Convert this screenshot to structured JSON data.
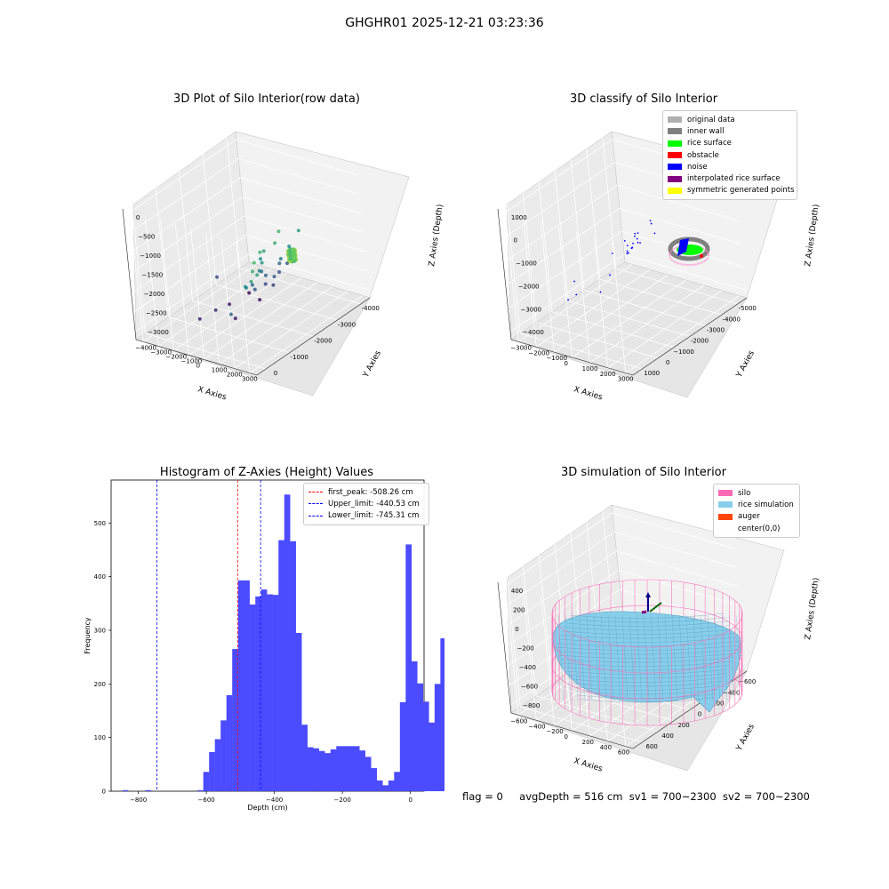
{
  "figure": {
    "title": "GHGHR01 2025-12-21 03:23:36",
    "footer": {
      "flag": "flag = 0",
      "avg_depth": "avgDepth = 516 cm",
      "sv1": "sv1 = 700~2300",
      "sv2": "sv2 = 700~2300"
    }
  },
  "chart_data": [
    {
      "id": "raw-3d",
      "type": "scatter",
      "title": "3D Plot of Silo Interior(row data)",
      "xlabel": "X Axies",
      "ylabel": "Y Axies",
      "zlabel": "Z Axies (Depth)",
      "x_ticks": [
        "-4000",
        "-3000",
        "-2000",
        "-1000",
        "0"
      ],
      "y_ticks": [
        "3000",
        "2000",
        "1000",
        "0",
        "−1000",
        "−2000",
        "−3000",
        "−4000"
      ],
      "z_ticks": [
        "0",
        "−500",
        "−1000",
        "−1500",
        "−2000",
        "−2500",
        "−3000"
      ],
      "xlim": [
        -4300,
        200
      ],
      "ylim": [
        -4200,
        3600
      ],
      "zlim": [
        -3200,
        200
      ],
      "colormap": "viridis by depth",
      "ring": {
        "cx": 300,
        "cy": 0,
        "radius": 700,
        "z": -1000
      },
      "points": [
        [
          -3600,
          2600,
          -1200
        ],
        [
          -3400,
          2400,
          -1050
        ],
        [
          -3250,
          2300,
          -900
        ],
        [
          -3100,
          2150,
          -1300
        ],
        [
          -3500,
          2000,
          -1450
        ],
        [
          -3300,
          1700,
          -1600
        ],
        [
          -3800,
          1400,
          -2100
        ],
        [
          -2600,
          1600,
          -1000
        ],
        [
          -2400,
          1300,
          -1400
        ],
        [
          -2200,
          1150,
          -1200
        ],
        [
          -2300,
          900,
          -1700
        ],
        [
          -2100,
          700,
          -1500
        ],
        [
          -2000,
          500,
          -1900
        ],
        [
          -1800,
          400,
          -2100
        ],
        [
          -2200,
          300,
          -2300
        ],
        [
          -1600,
          600,
          -2200
        ],
        [
          -1500,
          300,
          -2500
        ],
        [
          -1700,
          150,
          -2400
        ],
        [
          -1400,
          800,
          -1800
        ],
        [
          -1300,
          500,
          -2000
        ],
        [
          -1200,
          250,
          -2300
        ],
        [
          -1100,
          900,
          -1600
        ],
        [
          -1000,
          600,
          -1900
        ],
        [
          -900,
          300,
          -2200
        ],
        [
          -800,
          1100,
          -1300
        ],
        [
          -1900,
          1400,
          -1100
        ],
        [
          -1600,
          1200,
          -950
        ],
        [
          -2500,
          700,
          -2000
        ],
        [
          -2700,
          -300,
          -2900
        ],
        [
          -2900,
          -1200,
          -2700
        ],
        [
          -3300,
          -1600,
          -2800
        ],
        [
          -2200,
          -1500,
          -2900
        ],
        [
          -1500,
          -700,
          -3000
        ],
        [
          -1200,
          -1900,
          -3100
        ],
        [
          -2000,
          -2500,
          -2400
        ]
      ]
    },
    {
      "id": "classify-3d",
      "type": "scatter",
      "title": "3D classify of Silo Interior",
      "xlabel": "X Axies",
      "ylabel": "Y Axies",
      "zlabel": "Z Axies (Depth)",
      "x_ticks": [
        "-5000",
        "-4000",
        "-3000",
        "-2000",
        "−1000",
        "0",
        "1000"
      ],
      "y_ticks": [
        "3000",
        "2000",
        "1000",
        "0",
        "−1000",
        "−2000",
        "−3000"
      ],
      "z_ticks": [
        "1000",
        "0",
        "−1000",
        "−2000",
        "−3000",
        "−4000"
      ],
      "xlim": [
        -5200,
        1500
      ],
      "ylim": [
        -3500,
        3500
      ],
      "zlim": [
        -4500,
        1500
      ],
      "legend_placement": "upper right",
      "legend": [
        {
          "label": "original data",
          "color": "#b0b0b0"
        },
        {
          "label": "inner wall",
          "color": "#808080"
        },
        {
          "label": "rice surface",
          "color": "#00ff00"
        },
        {
          "label": "obstacle",
          "color": "#ff0000"
        },
        {
          "label": "noise",
          "color": "#0000ff"
        },
        {
          "label": "interpolated rice surface",
          "color": "#800080"
        },
        {
          "label": "symmetric generated points",
          "color": "#ffff00"
        }
      ],
      "noise_points": [
        [
          -3000,
          1600,
          -500
        ],
        [
          -2800,
          1300,
          -700
        ],
        [
          -2600,
          1500,
          -300
        ],
        [
          -2400,
          900,
          -900
        ],
        [
          -2200,
          600,
          -600
        ],
        [
          -2000,
          1000,
          -400
        ],
        [
          -1800,
          300,
          -1100
        ],
        [
          -1600,
          700,
          -800
        ],
        [
          -1500,
          200,
          -1400
        ],
        [
          -1300,
          400,
          -1200
        ],
        [
          -1100,
          -200,
          -1700
        ],
        [
          -900,
          100,
          -1500
        ],
        [
          -800,
          -500,
          -1900
        ],
        [
          -700,
          800,
          -1000
        ],
        [
          -600,
          -300,
          -1300
        ],
        [
          -2100,
          -600,
          -2500
        ],
        [
          -3500,
          -1200,
          -2800
        ],
        [
          -3700,
          -1500,
          -3000
        ],
        [
          -2600,
          -2200,
          -2900
        ],
        [
          -1000,
          -1500,
          -2300
        ],
        [
          -400,
          300,
          -700
        ],
        [
          -300,
          -800,
          -1600
        ],
        [
          -4200,
          1000,
          -1800
        ],
        [
          -1200,
          1200,
          -200
        ]
      ]
    },
    {
      "id": "histogram",
      "type": "bar",
      "title": "Histogram of Z-Axies (Height) Values",
      "xlabel": "Depth (cm)",
      "ylabel": "Frequency",
      "xlim": [
        -880,
        40
      ],
      "ylim": [
        0,
        580
      ],
      "x_ticks": [
        -800,
        -600,
        -400,
        -200,
        0
      ],
      "x_tick_labels": [
        "−800",
        "−600",
        "−400",
        "−200",
        "0"
      ],
      "y_ticks": [
        0,
        100,
        200,
        300,
        400,
        500
      ],
      "bar_color": "#4b4bff",
      "bin_width": 17,
      "bin_start": -864,
      "values": [
        0,
        2,
        0,
        0,
        0,
        2,
        0,
        0,
        0,
        0,
        0,
        0,
        0,
        0,
        2,
        36,
        73,
        97,
        132,
        179,
        265,
        393,
        393,
        348,
        363,
        376,
        367,
        366,
        468,
        553,
        466,
        295,
        124,
        82,
        80,
        75,
        71,
        78,
        84,
        84,
        84,
        84,
        76,
        64,
        43,
        20,
        11,
        20,
        36,
        166,
        460,
        242,
        201,
        167,
        128,
        200,
        285,
        127,
        183,
        112
      ],
      "vlines": [
        {
          "x": -508.26,
          "label": "first_peak: -508.26 cm",
          "color": "#ff0000"
        },
        {
          "x": -440.53,
          "label": "Upper_limit: -440.53 cm",
          "color": "#0000ff"
        },
        {
          "x": -745.31,
          "label": "Lower_limit: -745.31 cm",
          "color": "#0000ff"
        }
      ],
      "legend_placement": "upper right"
    },
    {
      "id": "simulation-3d",
      "type": "surface",
      "title": "3D simulation of Silo Interior",
      "xlabel": "X Axies",
      "ylabel": "Y Axies",
      "zlabel": "Z Axies (Depth)",
      "x_ticks": [
        "−600",
        "−400",
        "−200",
        "0",
        "200",
        "400",
        "600"
      ],
      "y_ticks": [
        "600",
        "400",
        "200",
        "0",
        "−200",
        "−400",
        "−600"
      ],
      "z_ticks": [
        "400",
        "200",
        "0",
        "−200",
        "−400",
        "−600",
        "−800"
      ],
      "xlim": [
        -700,
        700
      ],
      "ylim": [
        -700,
        700
      ],
      "zlim": [
        -950,
        500
      ],
      "silo": {
        "radius": 650,
        "z_top": 0,
        "z_bottom": -900
      },
      "legend_placement": "upper right",
      "legend": [
        {
          "label": "silo",
          "color": "#ff69b4"
        },
        {
          "label": "rice simulation",
          "color": "#87ceeb"
        },
        {
          "label": "auger",
          "color": "#ff4500"
        },
        {
          "label": "center(0,0)",
          "color": "#ffffff"
        }
      ]
    }
  ]
}
